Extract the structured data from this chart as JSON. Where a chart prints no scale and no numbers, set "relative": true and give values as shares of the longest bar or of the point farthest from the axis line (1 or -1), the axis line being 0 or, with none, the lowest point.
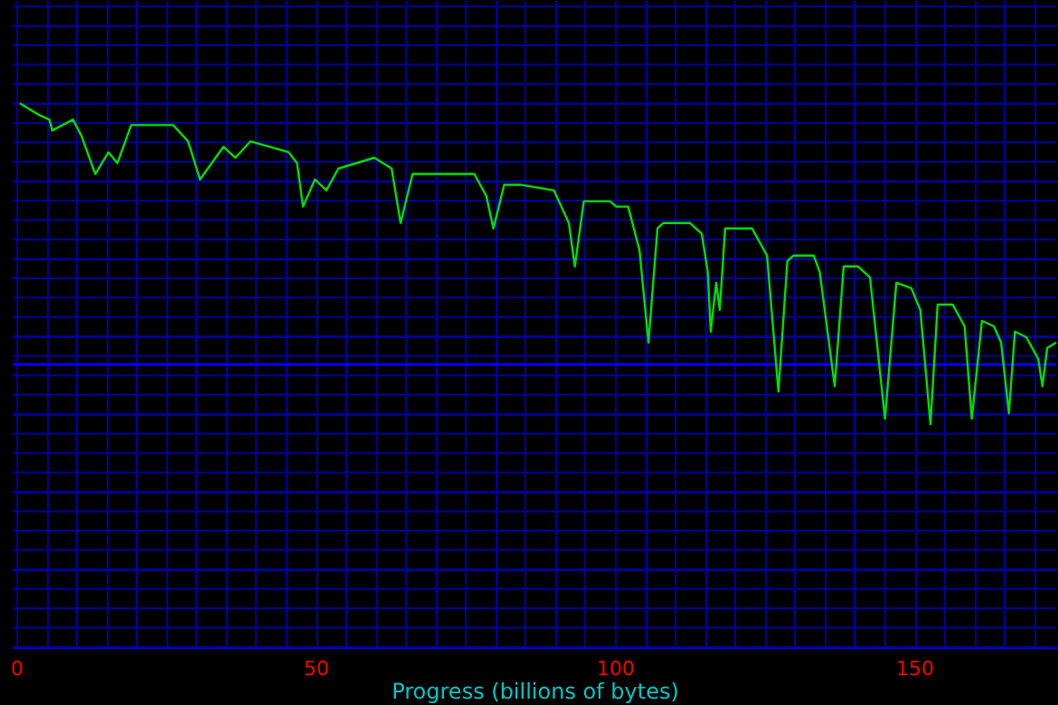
{
  "chart_data": {
    "type": "line",
    "relative": true,
    "xlabel": "Progress (billions of bytes)",
    "xlim": [
      -0.6,
      173.7
    ],
    "xticks": [
      0,
      {
        "value": 5,
        "label": null
      },
      {
        "value": 10,
        "label": null
      },
      {
        "value": 15,
        "label": null
      },
      {
        "value": 20,
        "label": null
      },
      {
        "value": 25,
        "label": null
      },
      {
        "value": 30,
        "label": null
      },
      {
        "value": 35,
        "label": null
      },
      {
        "value": 40,
        "label": null
      },
      {
        "value": 45,
        "label": null
      },
      50,
      {
        "value": 55,
        "label": null
      },
      {
        "value": 60,
        "label": null
      },
      {
        "value": 65,
        "label": null
      },
      {
        "value": 70,
        "label": null
      },
      {
        "value": 75,
        "label": null
      },
      {
        "value": 80,
        "label": null
      },
      {
        "value": 85,
        "label": null
      },
      {
        "value": 90,
        "label": null
      },
      {
        "value": 95,
        "label": null
      },
      100,
      {
        "value": 105,
        "label": null
      },
      {
        "value": 110,
        "label": null
      },
      {
        "value": 115,
        "label": null
      },
      {
        "value": 120,
        "label": null
      },
      {
        "value": 125,
        "label": null
      },
      {
        "value": 130,
        "label": null
      },
      {
        "value": 135,
        "label": null
      },
      {
        "value": 140,
        "label": null
      },
      {
        "value": 145,
        "label": null
      },
      150,
      {
        "value": 155,
        "label": null
      },
      {
        "value": 160,
        "label": null
      },
      {
        "value": 165,
        "label": null
      },
      {
        "value": 170,
        "label": null
      }
    ],
    "grid": true,
    "marker": "none",
    "line_style": "solid",
    "ref_lines": [
      {
        "axis": "y",
        "value": 0.52,
        "color": "#0000ff"
      }
    ],
    "series": [
      {
        "color": "#00e000",
        "x": [
          0.59,
          3.55,
          5.53,
          6.01,
          9.47,
          10.9,
          13.2,
          15.4,
          16.9,
          19.2,
          26.2,
          28.7,
          30.7,
          34.6,
          36.6,
          39.1,
          45.5,
          46.9,
          47.9,
          49.9,
          51.8,
          53.8,
          59.8,
          62.7,
          64.2,
          66.2,
          68.6,
          76.5,
          78.5,
          79.7,
          81.5,
          84.4,
          89.8,
          92.3,
          93.3,
          94.8,
          99.2,
          100.2,
          102.2,
          104.1,
          105.6,
          107.1,
          108.1,
          112.5,
          114.5,
          115.5,
          116.0,
          116.9,
          117.5,
          118.4,
          122.9,
          125.4,
          127.3,
          128.8,
          129.8,
          133.2,
          134.2,
          136.7,
          138.2,
          140.6,
          142.6,
          145.1,
          147.0,
          149.5,
          151.0,
          152.7,
          153.9,
          156.4,
          158.4,
          159.6,
          161.3,
          163.3,
          164.5,
          165.8,
          166.8,
          168.7,
          170.7,
          171.4,
          172.2,
          173.7
        ],
        "values": [
          1.0,
          0.98,
          0.97,
          0.95,
          0.97,
          0.94,
          0.87,
          0.91,
          0.89,
          0.96,
          0.96,
          0.93,
          0.86,
          0.92,
          0.9,
          0.93,
          0.91,
          0.89,
          0.81,
          0.86,
          0.84,
          0.88,
          0.9,
          0.88,
          0.78,
          0.87,
          0.87,
          0.87,
          0.83,
          0.77,
          0.85,
          0.85,
          0.84,
          0.78,
          0.7,
          0.82,
          0.82,
          0.81,
          0.81,
          0.73,
          0.56,
          0.77,
          0.78,
          0.78,
          0.76,
          0.69,
          0.58,
          0.67,
          0.62,
          0.77,
          0.77,
          0.72,
          0.47,
          0.71,
          0.72,
          0.72,
          0.69,
          0.48,
          0.7,
          0.7,
          0.68,
          0.42,
          0.67,
          0.66,
          0.62,
          0.41,
          0.63,
          0.63,
          0.59,
          0.42,
          0.6,
          0.59,
          0.56,
          0.43,
          0.58,
          0.57,
          0.53,
          0.48,
          0.55,
          0.56
        ]
      }
    ]
  }
}
